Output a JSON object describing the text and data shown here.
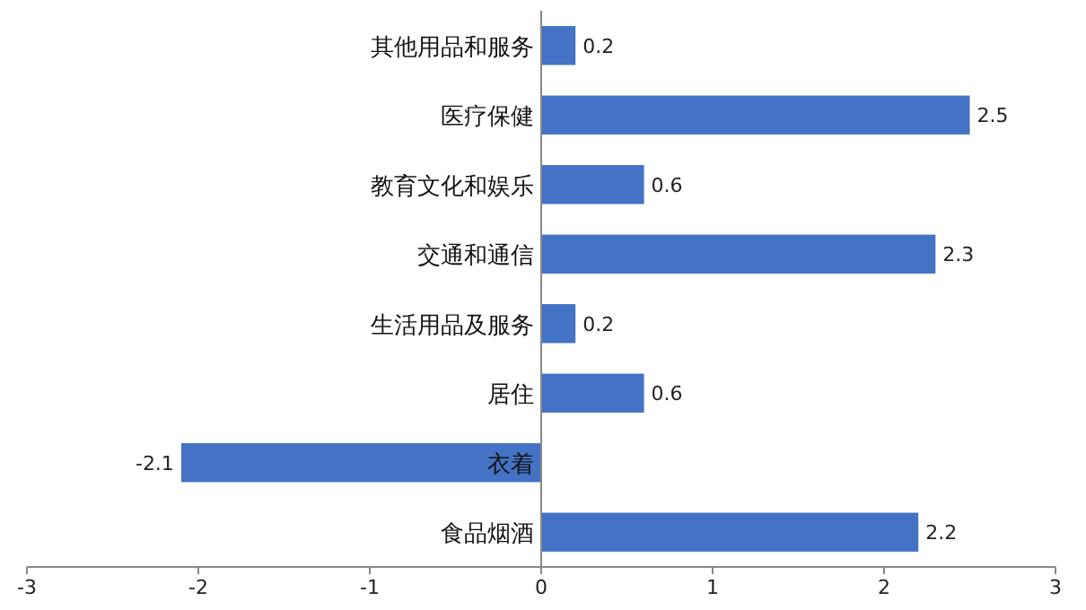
{
  "chart_data": {
    "type": "bar",
    "orientation": "horizontal",
    "categories": [
      "其他用品和服务",
      "医疗保健",
      "教育文化和娱乐",
      "交通和通信",
      "生活用品及服务",
      "居住",
      "衣着",
      "食品烟酒"
    ],
    "values": [
      0.2,
      2.5,
      0.6,
      2.3,
      0.2,
      0.6,
      -2.1,
      2.2
    ],
    "color": "#4472c4",
    "data_labels": true,
    "xlim": [
      -3,
      3
    ],
    "xticks": [
      -3,
      -2,
      -1,
      0,
      1,
      2,
      3
    ]
  }
}
